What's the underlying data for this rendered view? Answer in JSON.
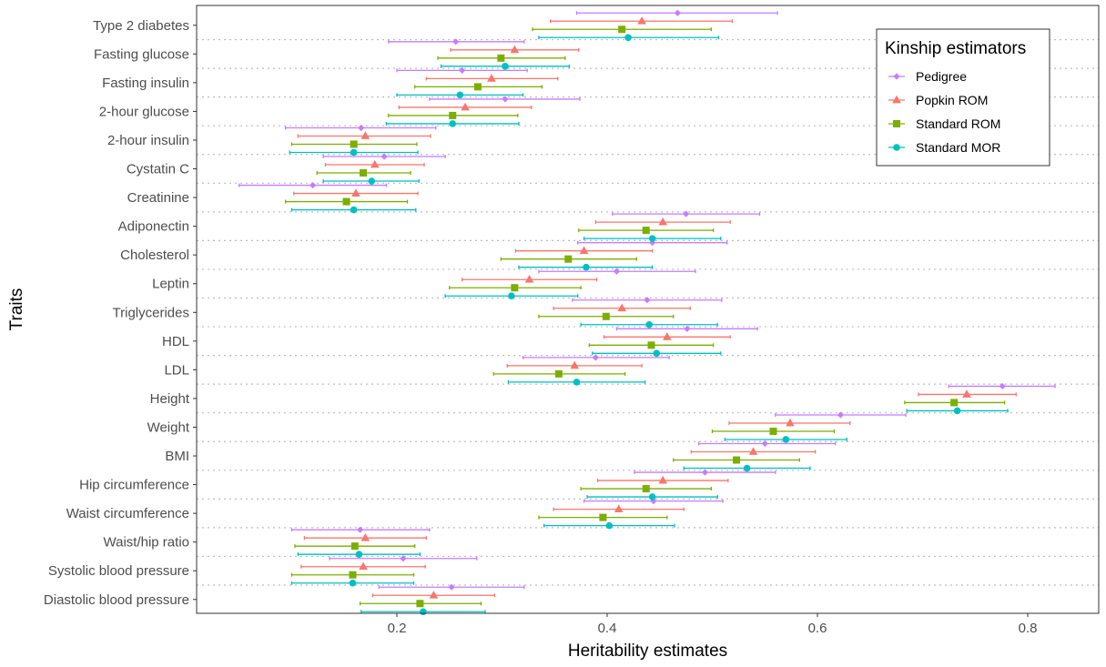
{
  "chart_data": {
    "type": "forest",
    "title": "",
    "xlabel": "Heritability estimates",
    "ylabel": "Traits",
    "xlim": [
      0.02,
      0.87
    ],
    "xticks": [
      0.2,
      0.4,
      0.6,
      0.8
    ],
    "xtick_labels": [
      "0.2",
      "0.4",
      "0.6",
      "0.8"
    ],
    "grid": "dotted horizontal separators between traits",
    "legend": {
      "title": "Kinship estimators",
      "position": "top-right"
    },
    "traits": [
      "Type 2 diabetes",
      "Fasting glucose",
      "Fasting insulin",
      "2-hour glucose",
      "2-hour insulin",
      "Cystatin C",
      "Creatinine",
      "Adiponectin",
      "Cholesterol",
      "Leptin",
      "Triglycerides",
      "HDL",
      "LDL",
      "Height",
      "Weight",
      "BMI",
      "Hip circumference",
      "Waist circumference",
      "Waist/hip ratio",
      "Systolic blood pressure",
      "Diastolic blood pressure"
    ],
    "series": [
      {
        "name": "Pedigree",
        "color": "#C77CFF",
        "shape": "diamond",
        "estimates": [
          0.467,
          0.256,
          0.262,
          0.303,
          0.166,
          0.188,
          0.12,
          0.475,
          0.443,
          0.409,
          0.438,
          0.476,
          0.389,
          0.776,
          0.622,
          0.55,
          0.493,
          0.444,
          0.165,
          0.206,
          0.252
        ],
        "lower": [
          0.371,
          0.192,
          0.2,
          0.231,
          0.094,
          0.13,
          0.05,
          0.405,
          0.372,
          0.335,
          0.367,
          0.409,
          0.32,
          0.725,
          0.56,
          0.487,
          0.426,
          0.378,
          0.1,
          0.136,
          0.183
        ],
        "upper": [
          0.562,
          0.321,
          0.324,
          0.374,
          0.237,
          0.246,
          0.19,
          0.545,
          0.514,
          0.484,
          0.509,
          0.543,
          0.459,
          0.826,
          0.684,
          0.617,
          0.56,
          0.51,
          0.231,
          0.276,
          0.321
        ]
      },
      {
        "name": "Popkin ROM",
        "color": "#F8766D",
        "shape": "triangle",
        "estimates": [
          0.433,
          0.312,
          0.29,
          0.265,
          0.17,
          0.179,
          0.161,
          0.453,
          0.378,
          0.326,
          0.414,
          0.457,
          0.369,
          0.742,
          0.574,
          0.539,
          0.453,
          0.411,
          0.17,
          0.168,
          0.235
        ],
        "lower": [
          0.346,
          0.251,
          0.228,
          0.202,
          0.106,
          0.132,
          0.102,
          0.389,
          0.313,
          0.262,
          0.349,
          0.397,
          0.305,
          0.696,
          0.516,
          0.48,
          0.391,
          0.349,
          0.112,
          0.109,
          0.177
        ],
        "upper": [
          0.519,
          0.373,
          0.353,
          0.328,
          0.232,
          0.226,
          0.22,
          0.517,
          0.443,
          0.39,
          0.479,
          0.517,
          0.433,
          0.789,
          0.631,
          0.598,
          0.515,
          0.473,
          0.228,
          0.227,
          0.293
        ]
      },
      {
        "name": "Standard ROM",
        "color": "#7CAE00",
        "shape": "square",
        "estimates": [
          0.414,
          0.299,
          0.277,
          0.253,
          0.159,
          0.168,
          0.152,
          0.437,
          0.363,
          0.312,
          0.399,
          0.442,
          0.354,
          0.73,
          0.558,
          0.523,
          0.437,
          0.396,
          0.16,
          0.158,
          0.222
        ],
        "lower": [
          0.329,
          0.239,
          0.217,
          0.192,
          0.1,
          0.124,
          0.094,
          0.373,
          0.299,
          0.25,
          0.335,
          0.383,
          0.292,
          0.683,
          0.5,
          0.463,
          0.375,
          0.335,
          0.103,
          0.1,
          0.165
        ],
        "upper": [
          0.499,
          0.36,
          0.338,
          0.315,
          0.219,
          0.213,
          0.21,
          0.501,
          0.428,
          0.375,
          0.463,
          0.501,
          0.417,
          0.778,
          0.616,
          0.583,
          0.499,
          0.457,
          0.217,
          0.216,
          0.28
        ]
      },
      {
        "name": "Standard MOR",
        "color": "#00BFC4",
        "shape": "circle",
        "estimates": [
          0.42,
          0.303,
          0.26,
          0.253,
          0.159,
          0.176,
          0.159,
          0.443,
          0.38,
          0.309,
          0.44,
          0.447,
          0.371,
          0.733,
          0.57,
          0.533,
          0.443,
          0.402,
          0.164,
          0.158,
          0.225
        ],
        "lower": [
          0.335,
          0.242,
          0.2,
          0.19,
          0.098,
          0.13,
          0.1,
          0.378,
          0.316,
          0.246,
          0.375,
          0.386,
          0.306,
          0.685,
          0.512,
          0.473,
          0.381,
          0.34,
          0.106,
          0.1,
          0.166
        ],
        "upper": [
          0.506,
          0.364,
          0.32,
          0.316,
          0.22,
          0.221,
          0.218,
          0.508,
          0.443,
          0.372,
          0.505,
          0.508,
          0.436,
          0.781,
          0.628,
          0.593,
          0.505,
          0.464,
          0.222,
          0.216,
          0.284
        ]
      }
    ]
  }
}
